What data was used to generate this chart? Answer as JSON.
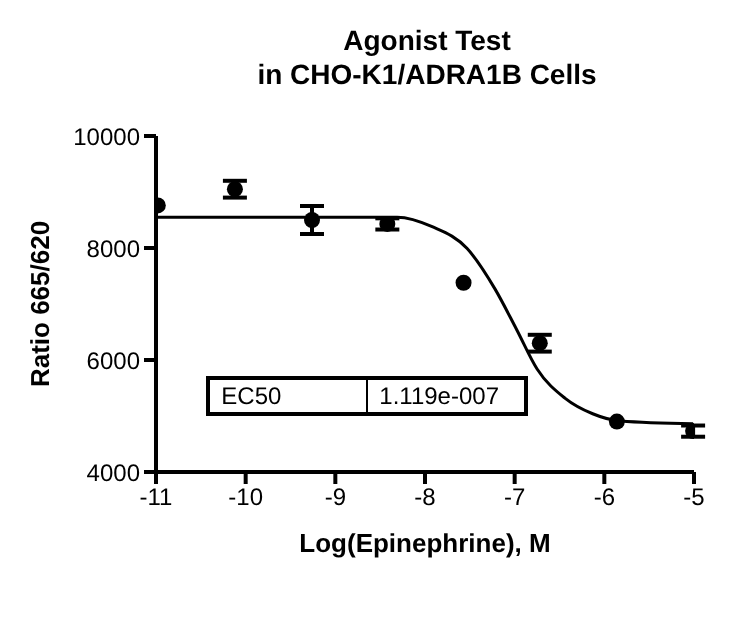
{
  "chart_data": {
    "type": "scatter",
    "title": "Agonist Test\nin CHO-K1/ADRA1B Cells",
    "xlabel": "Log(Epinephrine), M",
    "ylabel": "Ratio 665/620",
    "xlim": [
      -11,
      -5
    ],
    "xticks": [
      -11,
      -10,
      -9,
      -8,
      -7,
      -6,
      -5
    ],
    "ylim": [
      4000,
      10000
    ],
    "yticks": [
      4000,
      6000,
      8000,
      10000
    ],
    "grid": false,
    "legend": false,
    "marker": "circle",
    "annotations": [
      "EC50",
      "1.119e-007"
    ],
    "series": [
      {
        "color": "#000000",
        "x": [
          -10.98,
          -10.12,
          -9.26,
          -8.42,
          -7.57,
          -6.72,
          -5.86,
          -5.01
        ],
        "values": [
          8760,
          9050,
          8500,
          8430,
          7380,
          6300,
          4900,
          4730
        ],
        "errors": [
          null,
          150,
          250,
          100,
          null,
          150,
          null,
          100
        ]
      },
      {
        "type": "line",
        "color": "#000000",
        "marker": "none",
        "line_style": "solid",
        "x": [
          -10.98,
          -8.31,
          -7.92,
          -7.53,
          -7.22,
          -6.98,
          -6.75,
          -6.44,
          -6.13,
          -5.82,
          -5.01
        ],
        "values": [
          8550,
          8550,
          8380,
          7990,
          7270,
          6550,
          5840,
          5320,
          5040,
          4910,
          4860
        ]
      }
    ]
  }
}
